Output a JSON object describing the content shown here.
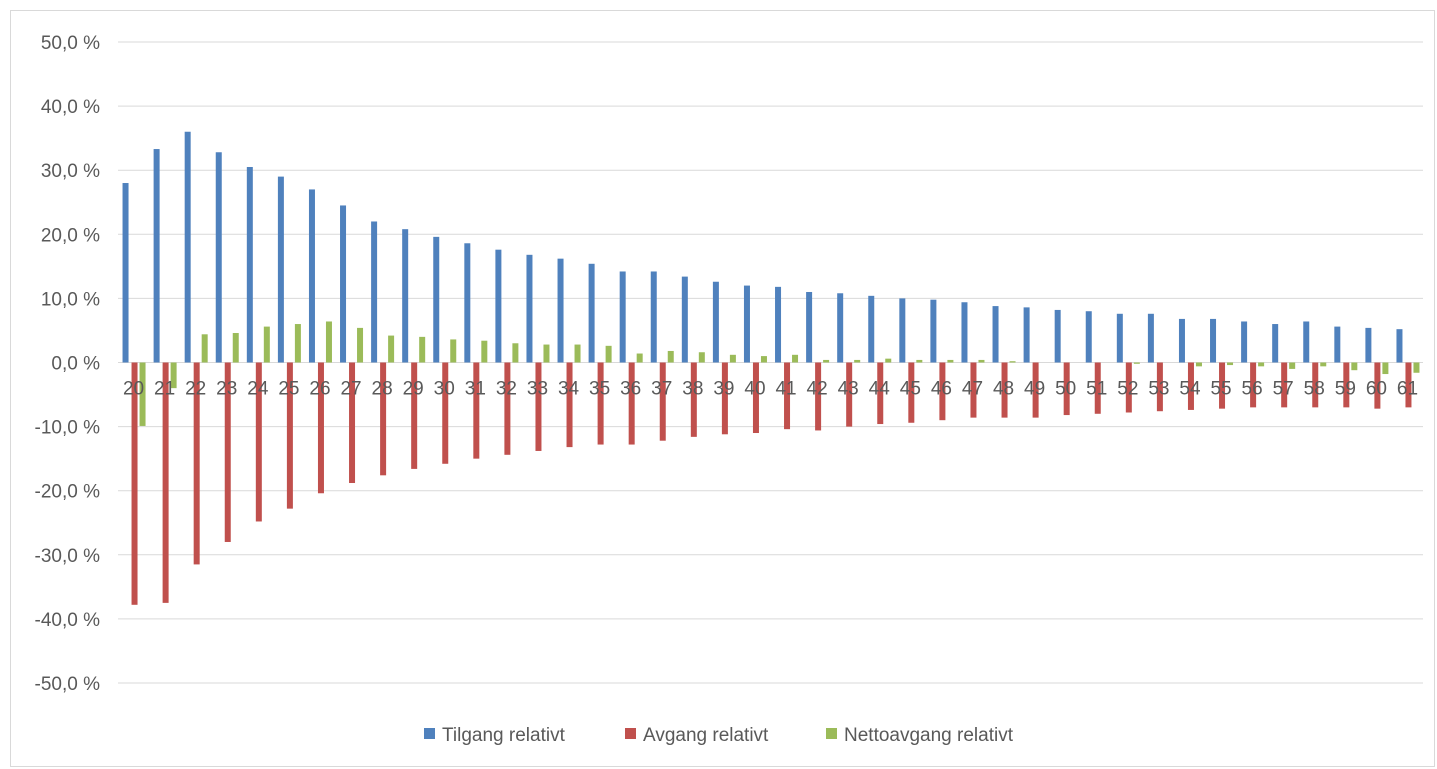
{
  "chart_data": {
    "type": "bar",
    "categories": [
      "20",
      "21",
      "22",
      "23",
      "24",
      "25",
      "26",
      "27",
      "28",
      "29",
      "30",
      "31",
      "32",
      "33",
      "34",
      "35",
      "36",
      "37",
      "38",
      "39",
      "40",
      "41",
      "42",
      "43",
      "44",
      "45",
      "46",
      "47",
      "48",
      "49",
      "50",
      "51",
      "52",
      "53",
      "54",
      "55",
      "56",
      "57",
      "58",
      "59",
      "60",
      "61"
    ],
    "series": [
      {
        "name": "Tilgang relativt",
        "color": "#4f81bd",
        "values": [
          28.0,
          33.3,
          36.0,
          32.8,
          30.5,
          29.0,
          27.0,
          24.5,
          22.0,
          20.8,
          19.6,
          18.6,
          17.6,
          16.8,
          16.2,
          15.4,
          14.2,
          14.2,
          13.4,
          12.6,
          12.0,
          11.8,
          11.0,
          10.8,
          10.4,
          10.0,
          9.8,
          9.4,
          8.8,
          8.6,
          8.2,
          8.0,
          7.6,
          7.6,
          6.8,
          6.8,
          6.4,
          6.0,
          6.4,
          5.6,
          5.4,
          5.2
        ]
      },
      {
        "name": "Avgang relativt",
        "color": "#c0504d",
        "values": [
          -37.8,
          -37.5,
          -31.5,
          -28.0,
          -24.8,
          -22.8,
          -20.4,
          -18.8,
          -17.6,
          -16.6,
          -15.8,
          -15.0,
          -14.4,
          -13.8,
          -13.2,
          -12.8,
          -12.8,
          -12.2,
          -11.6,
          -11.2,
          -11.0,
          -10.4,
          -10.6,
          -10.0,
          -9.6,
          -9.4,
          -9.0,
          -8.6,
          -8.6,
          -8.6,
          -8.2,
          -8.0,
          -7.8,
          -7.6,
          -7.4,
          -7.2,
          -7.0,
          -7.0,
          -7.0,
          -7.0,
          -7.2,
          -7.0
        ]
      },
      {
        "name": "Nettoavgang relativt",
        "color": "#9bbb59",
        "values": [
          -9.9,
          -4.0,
          4.4,
          4.6,
          5.6,
          6.0,
          6.4,
          5.4,
          4.2,
          4.0,
          3.6,
          3.4,
          3.0,
          2.8,
          2.8,
          2.6,
          1.4,
          1.8,
          1.6,
          1.2,
          1.0,
          1.2,
          0.4,
          0.4,
          0.6,
          0.4,
          0.4,
          0.4,
          0.2,
          0.0,
          0.0,
          0.0,
          -0.2,
          0.0,
          -0.6,
          -0.4,
          -0.6,
          -1.0,
          -0.6,
          -1.2,
          -1.8,
          -1.6
        ]
      }
    ],
    "ylim": [
      -50,
      50
    ],
    "y_ticks": [
      "50,0 %",
      "40,0 %",
      "30,0 %",
      "20,0 %",
      "10,0 %",
      "0,0 %",
      "-10,0 %",
      "-20,0 %",
      "-30,0 %",
      "-40,0 %",
      "-50,0 %"
    ],
    "y_tick_values": [
      50,
      40,
      30,
      20,
      10,
      0,
      -10,
      -20,
      -30,
      -40,
      -50
    ],
    "grid": true,
    "legend_position": "bottom",
    "title": "",
    "xlabel": "",
    "ylabel": ""
  }
}
